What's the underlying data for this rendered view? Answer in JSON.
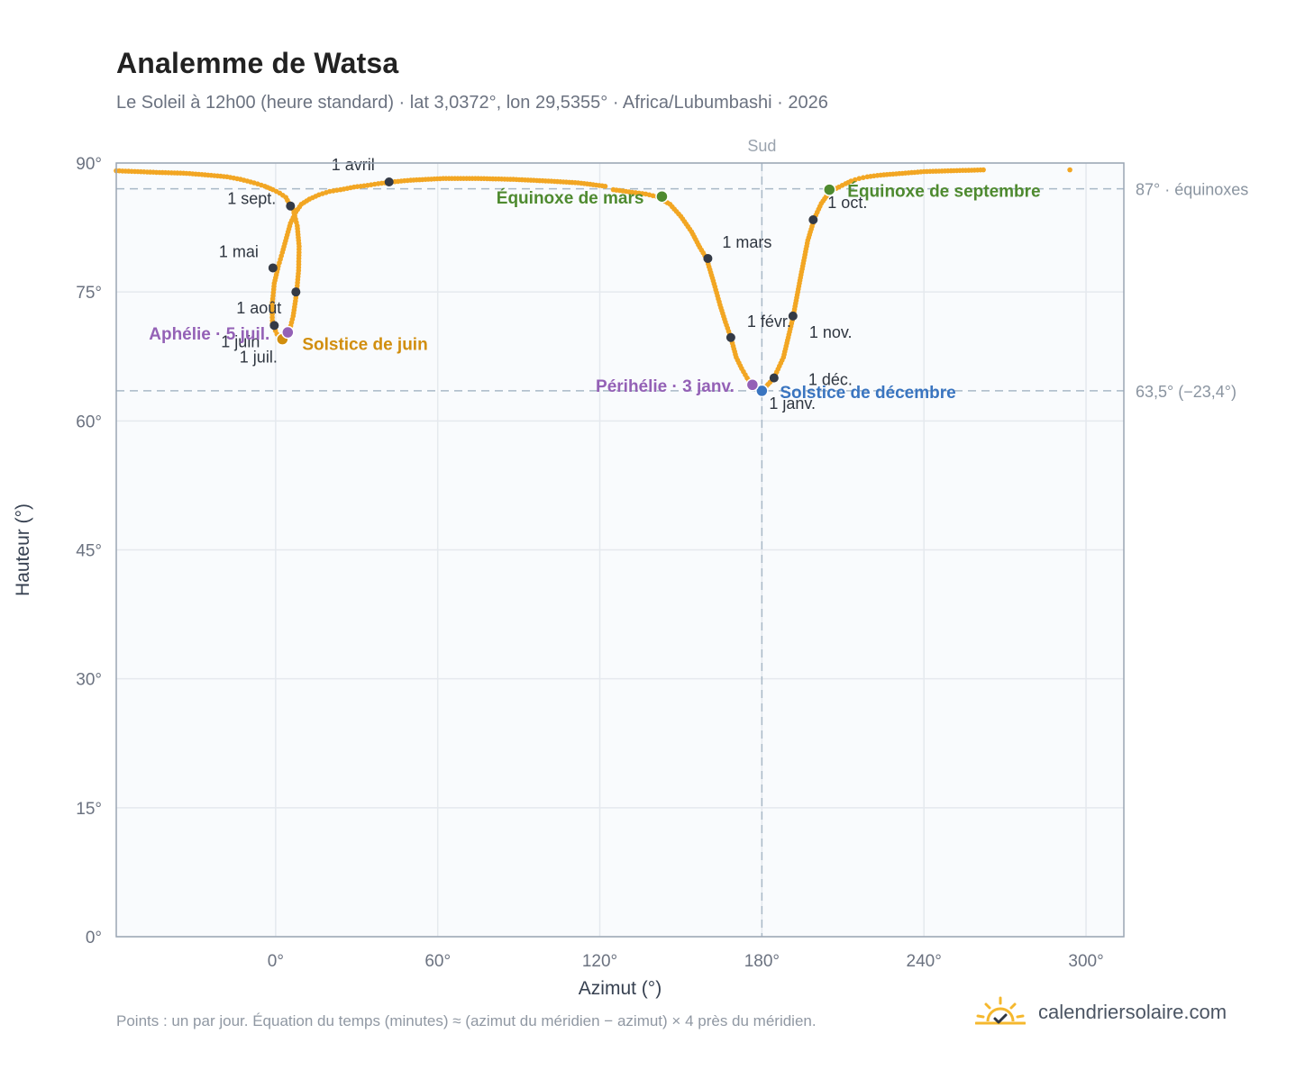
{
  "header": {
    "title": "Analemme de Watsa",
    "subtitle": "Le Soleil à 12h00 (heure standard) · lat 3,0372°, lon 29,5355° · Africa/Lubumbashi · 2026"
  },
  "footer": {
    "note": "Points : un par jour. Équation du temps (minutes) ≈ (azimut du méridien − azimut) × 4 près du méridien.",
    "brand": "calendriersolaire.com",
    "brand_icon": "sun-icon"
  },
  "colors": {
    "curve": "#f2a623",
    "month_marker": "#343a46",
    "equinox": "#4e8a2f",
    "solstice_june": "#d18e0e",
    "solstice_december": "#3a75c0",
    "apsis": "#9461b6",
    "reference_line": "#a9b9c7",
    "plot_background": "#f9fbfd"
  },
  "chart_data": {
    "type": "scatter",
    "title": "Analemme de Watsa",
    "xlabel": "Azimut (°)",
    "ylabel": "Hauteur (°)",
    "xlim": [
      -59,
      314
    ],
    "ylim": [
      0,
      90
    ],
    "x_ticks": [
      0,
      60,
      120,
      180,
      240,
      300
    ],
    "x_tick_labels": [
      "0°",
      "60°",
      "120°",
      "180°",
      "240°",
      "300°"
    ],
    "y_ticks": [
      0,
      15,
      30,
      45,
      60,
      75,
      90
    ],
    "y_tick_labels": [
      "0°",
      "15°",
      "30°",
      "45°",
      "60°",
      "75°",
      "90°"
    ],
    "grid": true,
    "vertical_reference": {
      "x": 180,
      "label": "Sud"
    },
    "horizontal_references": [
      {
        "y": 87,
        "label": "87° · équinoxes"
      },
      {
        "y": 63.5,
        "label": "63,5° (−23,4°)"
      }
    ],
    "series": [
      {
        "name": "",
        "daily_points": [
          [
            180,
            63.5
          ],
          [
            184.5,
            65
          ],
          [
            188,
            67.4
          ],
          [
            191.5,
            72
          ],
          [
            194.5,
            77
          ],
          [
            197,
            81
          ],
          [
            199.5,
            83.6
          ],
          [
            202,
            85.3
          ],
          [
            204.5,
            86.4
          ],
          [
            206.5,
            86.9
          ],
          [
            208.5,
            87.2
          ],
          [
            211,
            87.6
          ],
          [
            213,
            87.9
          ],
          [
            216,
            88.2
          ],
          [
            219,
            88.4
          ],
          [
            224,
            88.6
          ],
          [
            232,
            88.8
          ],
          [
            240,
            89
          ],
          [
            250,
            89.1
          ],
          [
            262,
            89.2
          ],
          [
            294,
            89.2
          ],
          [
            125,
            86.9
          ],
          [
            132,
            86.6
          ],
          [
            137,
            86.4
          ],
          [
            141,
            86.1
          ],
          [
            146,
            85.2
          ],
          [
            150,
            83.8
          ],
          [
            154,
            82
          ],
          [
            157,
            80.2
          ],
          [
            159.5,
            78.9
          ],
          [
            162,
            76.3
          ],
          [
            164.5,
            73.5
          ],
          [
            166.5,
            71.5
          ],
          [
            168.5,
            69.7
          ],
          [
            170.5,
            67.4
          ],
          [
            172.5,
            66.1
          ],
          [
            174.5,
            65
          ],
          [
            176.5,
            64.2
          ],
          [
            178.5,
            63.7
          ],
          [
            122,
            87.3
          ],
          [
            112,
            87.7
          ],
          [
            101,
            87.9
          ],
          [
            88,
            88.1
          ],
          [
            75,
            88.2
          ],
          [
            62,
            88.2
          ],
          [
            50,
            88
          ],
          [
            43,
            87.8
          ],
          [
            38,
            87.6
          ],
          [
            34,
            87.4
          ],
          [
            29,
            87.2
          ],
          [
            24,
            86.9
          ],
          [
            20,
            86.7
          ],
          [
            16,
            86.3
          ],
          [
            12.5,
            85.8
          ],
          [
            9.5,
            85.2
          ],
          [
            7.5,
            84.3
          ],
          [
            5.5,
            83
          ],
          [
            4,
            81.3
          ],
          [
            2.5,
            79.6
          ],
          [
            1,
            78
          ],
          [
            -0.5,
            76
          ],
          [
            -1.3,
            73.5
          ],
          [
            -1.2,
            71.3
          ],
          [
            0.5,
            70.1
          ],
          [
            2.5,
            69.5
          ],
          [
            5,
            70.3
          ],
          [
            6.5,
            72.2
          ],
          [
            7.8,
            75
          ],
          [
            8.5,
            77.5
          ],
          [
            8.7,
            80.3
          ],
          [
            8,
            82.7
          ],
          [
            6.5,
            84.6
          ],
          [
            5.5,
            85
          ],
          [
            3.8,
            86
          ],
          [
            1.5,
            86.5
          ],
          [
            -1,
            86.9
          ],
          [
            -4,
            87.3
          ],
          [
            -8,
            87.7
          ],
          [
            -13,
            88.1
          ],
          [
            -18,
            88.4
          ],
          [
            -25,
            88.6
          ],
          [
            -33,
            88.8
          ],
          [
            -43,
            88.9
          ],
          [
            -59,
            89.1
          ]
        ]
      }
    ],
    "month_markers": [
      {
        "label": "1 janv.",
        "x": 180,
        "y": 63.5
      },
      {
        "label": "1 févr.",
        "x": 168.5,
        "y": 69.7
      },
      {
        "label": "1 mars",
        "x": 160,
        "y": 78.9
      },
      {
        "label": "1 avril",
        "x": 42,
        "y": 87.8
      },
      {
        "label": "1 mai",
        "x": -1,
        "y": 77.8
      },
      {
        "label": "1 juin",
        "x": -0.5,
        "y": 71.1
      },
      {
        "label": "1 juil.",
        "x": 2,
        "y": 69.6
      },
      {
        "label": "1 août",
        "x": 7.5,
        "y": 75
      },
      {
        "label": "1 sept.",
        "x": 5.5,
        "y": 85
      },
      {
        "label": "1 oct.",
        "x": 199,
        "y": 83.4
      },
      {
        "label": "1 nov.",
        "x": 191.5,
        "y": 72.2
      },
      {
        "label": "1 déc.",
        "x": 184.5,
        "y": 65
      }
    ],
    "events": [
      {
        "label": "Équinoxe de mars",
        "x": 143,
        "y": 86.1,
        "color_key": "equinox"
      },
      {
        "label": "Équinoxe de septembre",
        "x": 205,
        "y": 86.9,
        "color_key": "equinox"
      },
      {
        "label": "Solstice de juin",
        "x": 2.5,
        "y": 69.5,
        "color_key": "solstice_june"
      },
      {
        "label": "Solstice de décembre",
        "x": 180,
        "y": 63.5,
        "color_key": "solstice_december"
      },
      {
        "label": "Aphélie · 5 juil.",
        "x": 4.5,
        "y": 70.3,
        "color_key": "apsis"
      },
      {
        "label": "Périhélie · 3 janv.",
        "x": 176.5,
        "y": 64.2,
        "color_key": "apsis"
      }
    ]
  }
}
